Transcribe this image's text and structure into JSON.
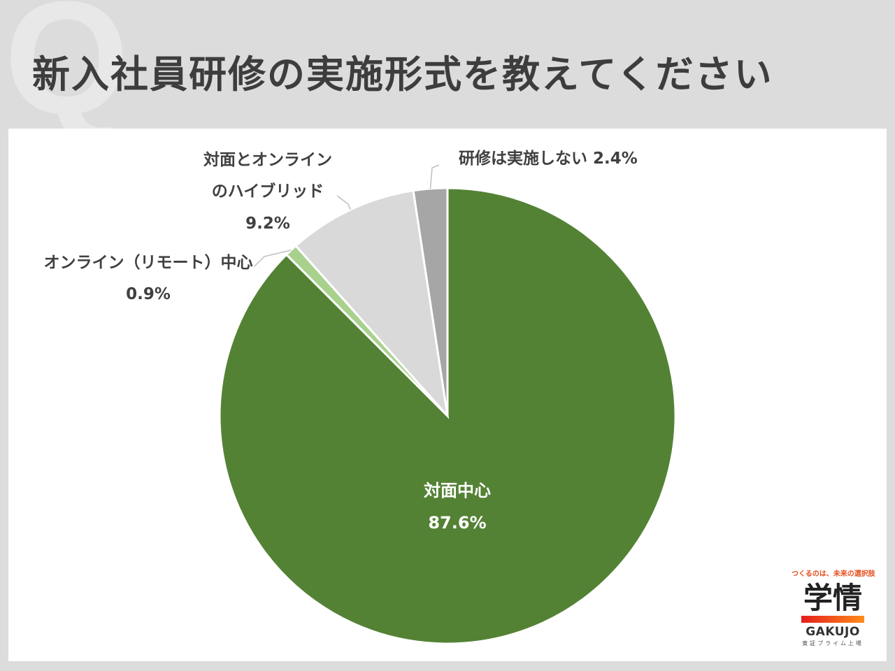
{
  "background_letter": "Q",
  "title": "新入社員研修の実施形式を教えてください",
  "chart_data": {
    "type": "pie",
    "title": "新入社員研修の実施形式を教えてください",
    "start_angle_deg": 0,
    "direction": "clockwise",
    "categories": [
      "対面中心",
      "オンライン（リモート）中心",
      "対面とオンラインのハイブリッド",
      "研修は実施しない"
    ],
    "values": [
      87.6,
      0.9,
      9.2,
      2.4
    ],
    "colors": [
      "#548235",
      "#a9d18e",
      "#d9d9d9",
      "#a6a6a6"
    ],
    "labels": [
      {
        "lines": [
          "対面中心",
          "87.6%"
        ],
        "placement": "inside"
      },
      {
        "lines": [
          "オンライン（リモート）中心",
          "0.9%"
        ],
        "placement": "outside-left"
      },
      {
        "lines": [
          "対面とオンライン",
          "のハイブリッド",
          "9.2%"
        ],
        "placement": "outside-top-left"
      },
      {
        "lines": [
          "研修は実施しない 2.4%"
        ],
        "placement": "outside-top-right"
      }
    ]
  },
  "brand": {
    "tagline": "つくるのは、未来の選択肢",
    "name_ja": "学情",
    "name_en": "GAKUJO",
    "sub": "東証プライム上場"
  }
}
